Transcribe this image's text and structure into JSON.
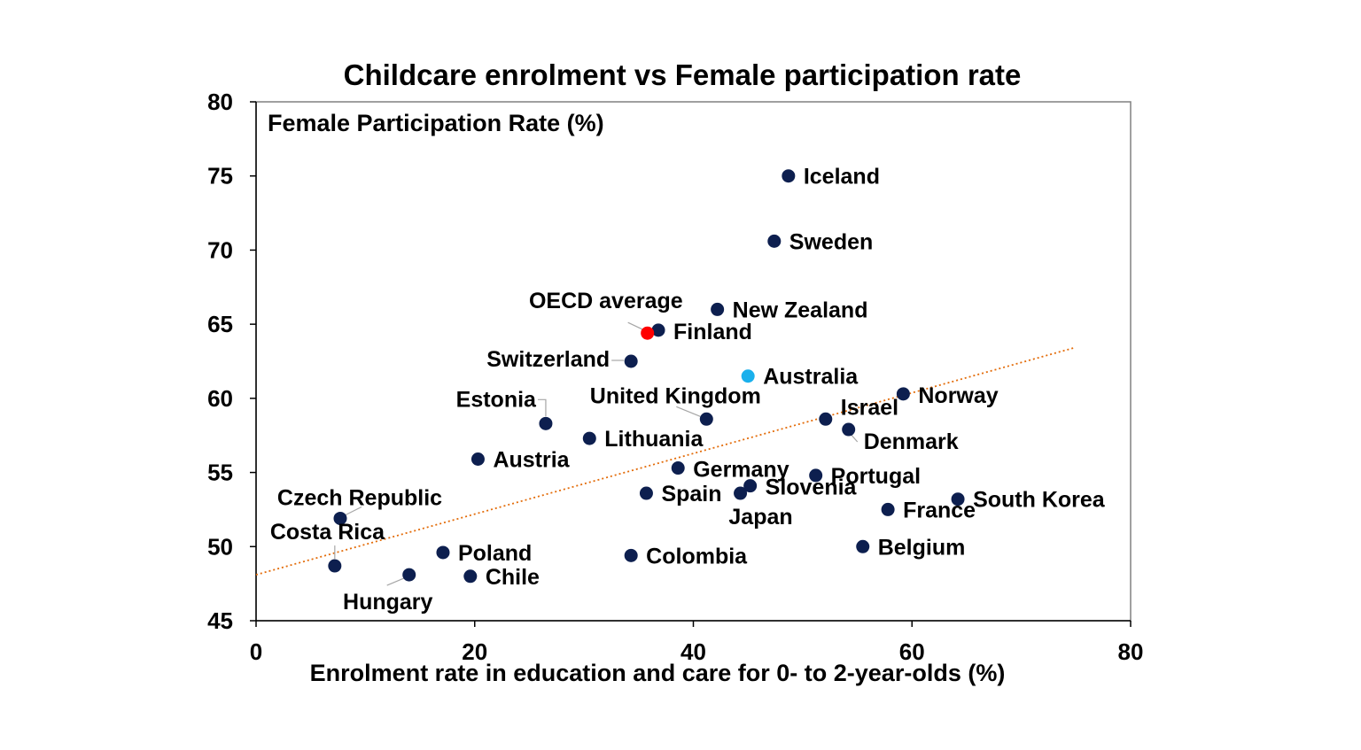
{
  "colors": {
    "default_point": "#0d1f4f",
    "oecd_point": "#ff0000",
    "australia_point": "#1ab0ec",
    "trendline": "#e36c0a",
    "axis": "#000000"
  },
  "chart_data": {
    "type": "scatter",
    "title": "Childcare enrolment vs Female participation rate",
    "xlabel": "Enrolment rate in education and care for 0- to 2-year-olds (%)",
    "ylabel": "Female Participation Rate (%)",
    "xlim": [
      0,
      80
    ],
    "ylim": [
      45,
      80
    ],
    "xticks": [
      0,
      20,
      40,
      60,
      80
    ],
    "yticks": [
      45,
      50,
      55,
      60,
      65,
      70,
      75,
      80
    ],
    "grid": false,
    "trendline": {
      "x": [
        0,
        74.8
      ],
      "y": [
        48.1,
        63.4
      ],
      "style": "dotted"
    },
    "points": [
      {
        "name": "Iceland",
        "x": 48.7,
        "y": 75.0,
        "highlight": "default"
      },
      {
        "name": "Sweden",
        "x": 47.4,
        "y": 70.6,
        "highlight": "default"
      },
      {
        "name": "New Zealand",
        "x": 42.2,
        "y": 66.0,
        "highlight": "default"
      },
      {
        "name": "Finland",
        "x": 36.8,
        "y": 64.6,
        "highlight": "default"
      },
      {
        "name": "OECD average",
        "x": 35.8,
        "y": 64.4,
        "highlight": "oecd"
      },
      {
        "name": "Switzerland",
        "x": 34.3,
        "y": 62.5,
        "highlight": "default"
      },
      {
        "name": "Australia",
        "x": 45.0,
        "y": 61.5,
        "highlight": "australia"
      },
      {
        "name": "Norway",
        "x": 59.2,
        "y": 60.3,
        "highlight": "default"
      },
      {
        "name": "United Kingdom",
        "x": 41.2,
        "y": 58.6,
        "highlight": "default"
      },
      {
        "name": "Israel",
        "x": 52.1,
        "y": 58.6,
        "highlight": "default"
      },
      {
        "name": "Estonia",
        "x": 26.5,
        "y": 58.3,
        "highlight": "default"
      },
      {
        "name": "Denmark",
        "x": 54.2,
        "y": 57.9,
        "highlight": "default"
      },
      {
        "name": "Lithuania",
        "x": 30.5,
        "y": 57.3,
        "highlight": "default"
      },
      {
        "name": "Austria",
        "x": 20.3,
        "y": 55.9,
        "highlight": "default"
      },
      {
        "name": "Germany",
        "x": 38.6,
        "y": 55.3,
        "highlight": "default"
      },
      {
        "name": "Portugal",
        "x": 51.2,
        "y": 54.8,
        "highlight": "default"
      },
      {
        "name": "Slovenia",
        "x": 45.2,
        "y": 54.1,
        "highlight": "default"
      },
      {
        "name": "Spain",
        "x": 35.7,
        "y": 53.6,
        "highlight": "default"
      },
      {
        "name": "Japan",
        "x": 44.3,
        "y": 53.6,
        "highlight": "default"
      },
      {
        "name": "South Korea",
        "x": 64.2,
        "y": 53.2,
        "highlight": "default"
      },
      {
        "name": "France",
        "x": 57.8,
        "y": 52.5,
        "highlight": "default"
      },
      {
        "name": "Czech Republic",
        "x": 7.7,
        "y": 51.9,
        "highlight": "default"
      },
      {
        "name": "Belgium",
        "x": 55.5,
        "y": 50.0,
        "highlight": "default"
      },
      {
        "name": "Poland",
        "x": 17.1,
        "y": 49.6,
        "highlight": "default"
      },
      {
        "name": "Colombia",
        "x": 34.3,
        "y": 49.4,
        "highlight": "default"
      },
      {
        "name": "Costa Rica",
        "x": 7.2,
        "y": 48.7,
        "highlight": "default"
      },
      {
        "name": "Hungary",
        "x": 14.0,
        "y": 48.1,
        "highlight": "default"
      },
      {
        "name": "Chile",
        "x": 19.6,
        "y": 48.0,
        "highlight": "default"
      }
    ]
  }
}
